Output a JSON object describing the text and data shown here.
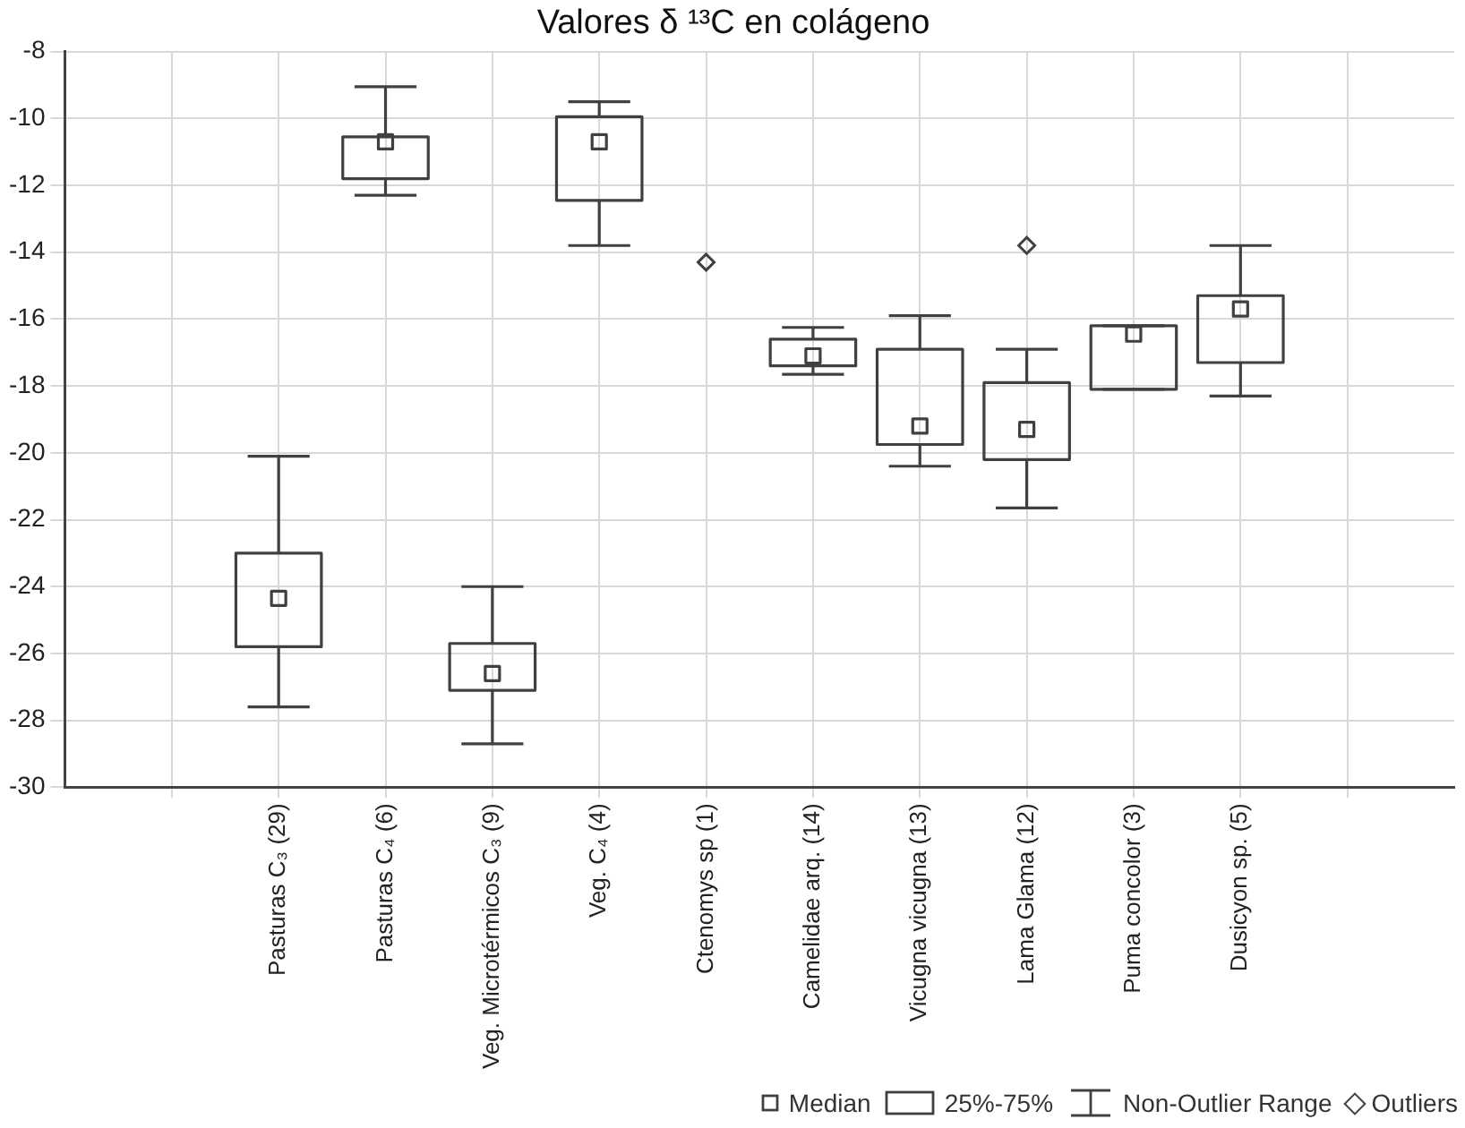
{
  "chart_data": {
    "type": "box",
    "title": "Valores δ ¹³C en colágeno",
    "categories": [
      null,
      "Pasturas C₃ (29)",
      "Pasturas C₄ (6)",
      "Veg. Microtérmicos C₃ (9)",
      "Veg. C₄ (4)",
      "Ctenomys sp (1)",
      "Camelidae arq. (14)",
      "Vicugna vicugna (13)",
      "Lama Glama (12)",
      "Puma concolor (3)",
      "Dusicyon sp. (5)",
      null
    ],
    "color": "#404040",
    "boxes": [
      null,
      {
        "low": -27.6,
        "q1": -25.8,
        "median": -24.35,
        "q3": -23.0,
        "high": -20.1
      },
      {
        "low": -12.3,
        "q1": -11.8,
        "median": -10.7,
        "q3": -10.55,
        "high": -9.05
      },
      {
        "low": -28.7,
        "q1": -27.1,
        "median": -26.6,
        "q3": -25.7,
        "high": -24.0
      },
      {
        "low": -13.8,
        "q1": -12.45,
        "median": -10.7,
        "q3": -9.95,
        "high": -9.5
      },
      null,
      {
        "low": -17.65,
        "q1": -17.4,
        "median": -17.1,
        "q3": -16.6,
        "high": -16.25
      },
      {
        "low": -20.4,
        "q1": -19.75,
        "median": -19.2,
        "q3": -16.9,
        "high": -15.9
      },
      {
        "low": -21.65,
        "q1": -20.2,
        "median": -19.3,
        "q3": -17.9,
        "high": -16.9
      },
      {
        "low": -18.1,
        "q1": -18.1,
        "median": -16.45,
        "q3": -16.2,
        "high": -16.2
      },
      {
        "low": -18.3,
        "q1": -17.3,
        "median": -15.7,
        "q3": -15.3,
        "high": -13.8
      },
      null
    ],
    "ylim": [
      -30,
      -8
    ],
    "yticks": [
      -30,
      -28,
      -26,
      -24,
      -22,
      -20,
      -18,
      -16,
      -14,
      -12,
      -10,
      -8
    ],
    "series": [
      {
        "type": "scatter",
        "name": "Outliers",
        "color": "#404040",
        "marker": "diamond",
        "x": [
          "Ctenomys sp (1)",
          "Lama Glama (12)"
        ],
        "values": [
          -14.3,
          -13.8
        ]
      }
    ],
    "grid": true,
    "legend": "bottom right",
    "annotations": [
      "Median",
      "25%-75%",
      "Non-Outlier Range"
    ]
  }
}
